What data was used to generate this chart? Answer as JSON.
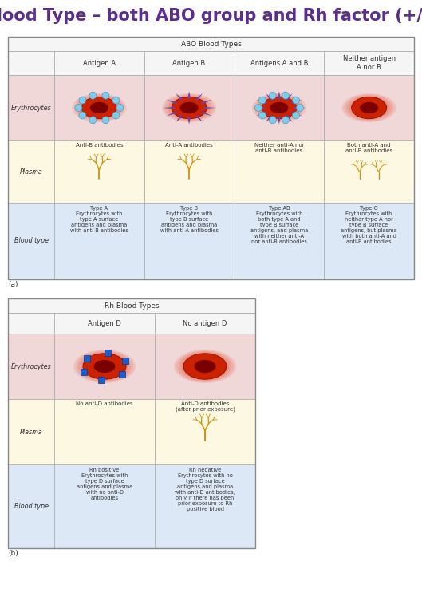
{
  "title": "Blood Type – both ABO group and Rh factor (+/-)",
  "title_color": "#5b2d8e",
  "title_fontsize": 15,
  "bg_color": "#ffffff",
  "abo_header": "ABO Blood Types",
  "rh_header": "Rh Blood Types",
  "abo_columns": [
    "Antigen A",
    "Antigen B",
    "Antigens A and B",
    "Neither antigen\nA nor B"
  ],
  "rh_columns": [
    "Antigen D",
    "No antigen D"
  ],
  "plasma_labels_abo": [
    "Anti-B antibodies",
    "Anti-A antibodies",
    "Neither anti-A nor\nanti-B antibodies",
    "Both anti-A and\nanti-B antibodies"
  ],
  "blood_type_labels_abo": [
    "Type A\nErythrocytes with\ntype A surface\nantigens and plasma\nwith anti-B antibodies",
    "Type B\nErythrocytes with\ntype B surface\nantigens and plasma\nwith anti-A antibodies",
    "Type AB\nErythrocytes with\nboth type A and\ntype B surface\nantigens, and plasma\nwith neither anti-A\nnor anti-B antibodies",
    "Type O\nErythrocytes with\nneither type A nor\ntype B surface\nantigens, but plasma\nwith both anti-A and\nanti-B antibodies"
  ],
  "plasma_labels_rh": [
    "No anti-D antibodies",
    "Anti-D antibodies\n(after prior exposure)"
  ],
  "blood_type_labels_rh": [
    "Rh positive\nErythrocytes with\ntype D surface\nantigens and plasma\nwith no anti-D\nantibodies",
    "Rh negative\nErythrocytes with no\ntype D surface\nantigens and plasma\nwith anti-D antibodies,\nonly if there has been\nprior exposure to Rh\npositive blood"
  ],
  "row_colors": {
    "header": "#f5f5f5",
    "erythrocytes": "#f0d8d8",
    "plasma": "#fdf8e1",
    "blood_type": "#dce8f5"
  },
  "tree_color": "#d4920a",
  "spike_color": "#7040a0",
  "dot_color": "#7ecce8"
}
